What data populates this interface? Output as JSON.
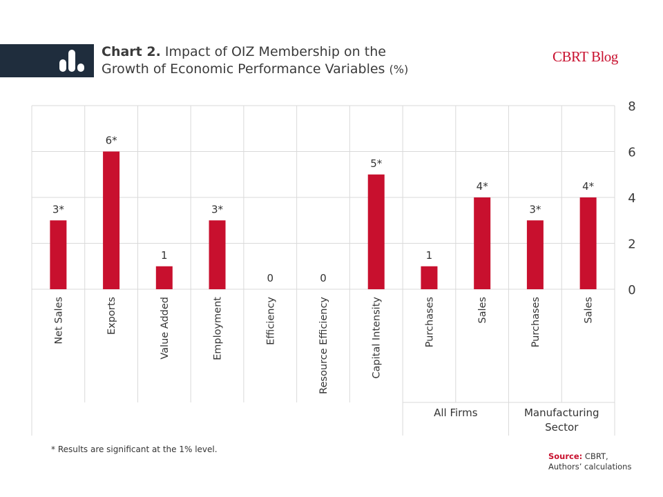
{
  "header": {
    "chart_label": "Chart 2.",
    "title_line1": "Impact of OIZ Membership on the",
    "title_line2": "Growth of Economic Performance Variables",
    "title_unit": "(%)",
    "brand": "CBRT Blog",
    "logo_icon": "bar-chart-icon"
  },
  "colors": {
    "bar": "#c8102e",
    "header_band": "#1f2d3d",
    "grid": "#d9d9d9",
    "brand": "#c8102e"
  },
  "chart_data": {
    "type": "bar",
    "categories": [
      "Net Sales",
      "Exports",
      "Value Added",
      "Employment",
      "Efficiency",
      "Resource Efficiency",
      "Capital Intensity",
      "Purchases",
      "Sales",
      "Purchases",
      "Sales"
    ],
    "values": [
      3,
      6,
      1,
      3,
      0,
      0,
      5,
      1,
      4,
      3,
      4
    ],
    "data_labels": [
      "3*",
      "6*",
      "1",
      "3*",
      "0",
      "0",
      "5*",
      "1",
      "4*",
      "3*",
      "4*"
    ],
    "groups": [
      {
        "label": "All Firms",
        "start_index": 7,
        "end_index": 8
      },
      {
        "label_lines": [
          "Manufacturing",
          "Sector"
        ],
        "start_index": 9,
        "end_index": 10
      }
    ],
    "y_ticks": [
      0,
      2,
      4,
      6,
      8
    ],
    "ylim": [
      0,
      8
    ],
    "y_axis_position": "right",
    "grid": true,
    "xlabel": "",
    "ylabel": ""
  },
  "footnote": "* Results are significant  at the 1% level.",
  "source": {
    "label": "Source:",
    "text_line1": "CBRT,",
    "text_line2": "Authors’ calculations"
  }
}
